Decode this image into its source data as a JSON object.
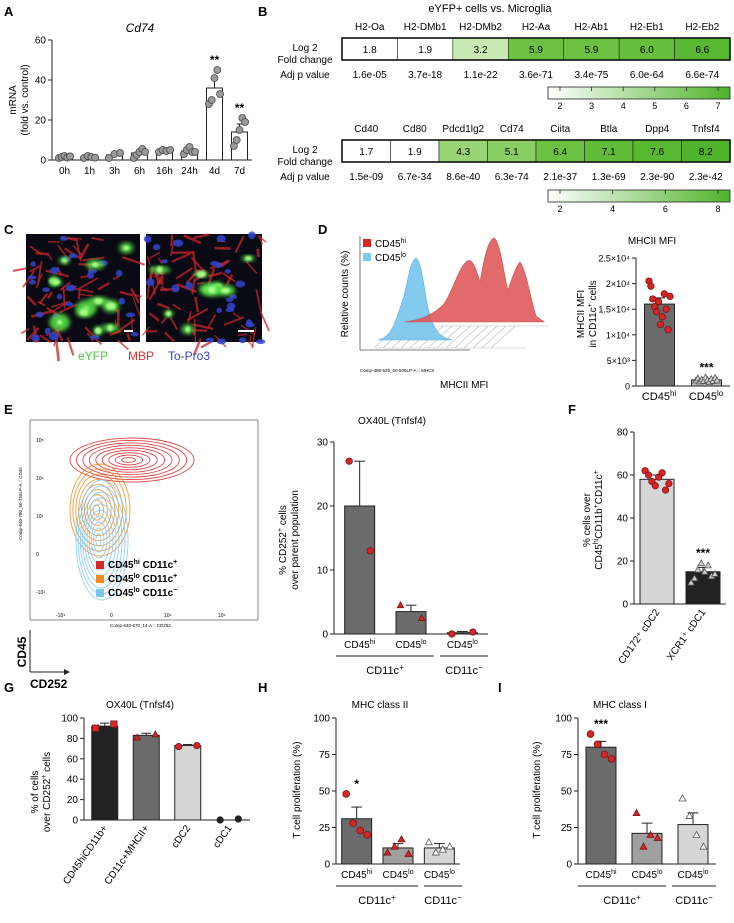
{
  "panels": {
    "A": "A",
    "B": "B",
    "C": "C",
    "D": "D",
    "E": "E",
    "F": "F",
    "G": "G",
    "H": "H",
    "I": "I"
  },
  "colors": {
    "bar_dark": "#6b6b6b",
    "bar_mid": "#a0a0a0",
    "bar_light": "#d6d6d6",
    "bar_black": "#222222",
    "red": "#d62728",
    "dot_grey": "#9a9a9a",
    "green_dark": "#4fb32b",
    "cyan": "#7cc8ee",
    "eyfp": "#44cc33",
    "mbp": "#dd3333",
    "topro": "#3344cc"
  },
  "panelA": {
    "title": "Cd74",
    "ylabel_1": "mRNA",
    "ylabel_2": "(fold vs. control)",
    "chart_data": {
      "type": "bar",
      "categories": [
        "0h",
        "1h",
        "3h",
        "6h",
        "16h",
        "24h",
        "4d",
        "7d"
      ],
      "values": [
        1.5,
        1.5,
        2.5,
        3.5,
        4.5,
        4.5,
        36,
        14
      ],
      "errors": [
        0.5,
        0.5,
        0.8,
        1.5,
        0.8,
        1.5,
        6,
        4
      ],
      "points": [
        [
          1,
          1.5,
          2,
          1.2,
          1.8
        ],
        [
          1,
          2,
          1.5,
          1.2
        ],
        [
          1,
          3,
          3.5
        ],
        [
          1,
          2.5,
          4,
          5.5,
          4
        ],
        [
          4,
          5,
          4.5,
          5
        ],
        [
          3,
          5,
          6.5,
          4,
          4
        ],
        [
          28,
          30,
          41,
          45,
          33
        ],
        [
          7,
          10,
          15,
          21,
          19
        ]
      ],
      "annotations": [
        "",
        "",
        "",
        "",
        "",
        "",
        "**",
        "**"
      ],
      "ylim": [
        0,
        60
      ],
      "yticks": [
        0,
        20,
        40,
        60
      ]
    }
  },
  "panelB": {
    "title": "eYFP+ cells vs. Microglia",
    "row_label_1a": "Log 2",
    "row_label_1b": "Fold change",
    "row_label_2": "Adj p value",
    "table1": {
      "genes": [
        "H2-Oa",
        "H2-DMb1",
        "H2-DMb2",
        "H2-Aa",
        "H2-Ab1",
        "H2-Eb1",
        "H2-Eb2"
      ],
      "fc": [
        "1.8",
        "1.9",
        "3.2",
        "5.9",
        "5.9",
        "6.0",
        "6.6"
      ],
      "p": [
        "1.6e-05",
        "3.7e-18",
        "1.1e-22",
        "3.6e-71",
        "3.4e-75",
        "6.0e-64",
        "6.6e-74"
      ],
      "fill": [
        "#ffffff",
        "#ffffff",
        "#c8e8b4",
        "#6cc142",
        "#6cc142",
        "#66bf3c",
        "#58b831"
      ]
    },
    "scale1": {
      "ticks": [
        "2",
        "3",
        "4",
        "5",
        "6",
        "7"
      ]
    },
    "table2": {
      "genes": [
        "Cd40",
        "Cd80",
        "Pdcd1lg2",
        "Cd74",
        "Ciita",
        "Btla",
        "Dpp4",
        "Tnfsf4"
      ],
      "fc": [
        "1.7",
        "1.9",
        "4.3",
        "5.1",
        "6.4",
        "7.1",
        "7.6",
        "8.2"
      ],
      "p": [
        "1.5e-09",
        "6.7e-34",
        "8.6e-40",
        "6.3e-74",
        "2.1e-37",
        "1.3e-69",
        "2.3e-90",
        "2.3e-42"
      ],
      "fill": [
        "#ffffff",
        "#ffffff",
        "#98d576",
        "#88ce63",
        "#6cc142",
        "#60bb37",
        "#58b831",
        "#4fb32b"
      ]
    },
    "scale2": {
      "ticks": [
        "2",
        "4",
        "6",
        "8"
      ]
    }
  },
  "panelC": {
    "legend": [
      "eYFP",
      "MBP",
      "To-Pro3"
    ]
  },
  "panelD": {
    "hist_ylabel": "Relative counts (%)",
    "hist_xlabel": "MHCII MFI",
    "hist_axis_small": "Comp-488-525_50-505LP-A :: MHCII",
    "legend_hi": "CD45",
    "legend_hi_sup": "hi",
    "legend_lo": "CD45",
    "legend_lo_sup": "lo",
    "bar_title": "MHCII MFI",
    "bar_ylabel_1": "MHCII MFI",
    "bar_ylabel_2": "in CD11c",
    "bar_ylabel_sup": "+",
    "bar_ylabel_3": " cells",
    "chart_data": {
      "type": "bar",
      "categories": [
        "CD45hi",
        "CD45lo"
      ],
      "values": [
        16000,
        1200
      ],
      "errors": [
        1200,
        200
      ],
      "points": [
        [
          20500,
          19500,
          17000,
          15500,
          14500,
          16500,
          12000,
          13500,
          18000,
          15000,
          11000,
          17500
        ],
        [
          1100,
          1500,
          900,
          1300,
          1000,
          1700,
          1200,
          800,
          1400,
          1000,
          1600,
          1100
        ]
      ],
      "annotations": [
        "",
        "***"
      ],
      "ylim": [
        0,
        25000
      ],
      "yticks": [
        "0",
        "5×10³",
        "1×10⁴",
        "1.5×10⁴",
        "2×10⁴",
        "2.5×10⁴"
      ]
    },
    "xtick_hi": "CD45",
    "xtick_hi_sup": "hi",
    "xtick_lo": "CD45",
    "xtick_lo_sup": "lo"
  },
  "panelE": {
    "flow_ylabel": "CD45",
    "flow_xlabel": "CD252",
    "flow_axis_small_y": "Comp-640-780_60-755LP-A :: CD45",
    "flow_axis_small_x": "Comp-640-670_14-A :: CD252",
    "legend": [
      {
        "a": "CD45",
        "sup": "hi",
        "b": " CD11c",
        "sup2": "+",
        "color": "#d62728"
      },
      {
        "a": "CD45",
        "sup": "lo",
        "b": " CD11c",
        "sup2": "+",
        "color": "#f08a1c"
      },
      {
        "a": "CD45",
        "sup": "lo",
        "b": " CD11c",
        "sup2": "−",
        "color": "#7cc8ee"
      }
    ],
    "bar_title": "OX40L (Tnfsf4)",
    "bar_ylabel_1": "% CD252",
    "bar_ylabel_sup": "+",
    "bar_ylabel_2": " cells",
    "bar_ylabel_3": "over parent population",
    "chart_data": {
      "type": "bar",
      "categories": [
        "CD45hi",
        "CD45lo",
        "CD45lo"
      ],
      "values": [
        20,
        3.5,
        0.2
      ],
      "errors": [
        7,
        1,
        0.2
      ],
      "points": [
        [
          27,
          13
        ],
        [
          4.5,
          2.5
        ],
        [
          0,
          0.3
        ]
      ],
      "ylim": [
        0,
        30
      ],
      "yticks": [
        0,
        10,
        20,
        30
      ]
    },
    "group1": "CD11c",
    "group1_sup": "+",
    "group2": "CD11c",
    "group2_sup": "−"
  },
  "panelF": {
    "ylabel_1": "% cells over",
    "ylabel_2": "CD45",
    "ylabel_sup": "hi",
    "ylabel_3": "CD11b",
    "ylabel_sup2": "+",
    "ylabel_4": "CD11c",
    "ylabel_sup3": "+",
    "chart_data": {
      "type": "bar",
      "categories": [
        "CD172⁺ cDC2",
        "XCR1⁺ cDC1"
      ],
      "values": [
        58,
        15
      ],
      "errors": [
        2,
        2
      ],
      "points": [
        [
          62,
          60,
          57,
          55,
          59,
          61,
          53,
          56
        ],
        [
          10,
          12,
          16,
          19,
          15,
          18,
          13,
          14
        ]
      ],
      "annotations": [
        "",
        "***"
      ],
      "ylim": [
        0,
        80
      ],
      "yticks": [
        0,
        20,
        40,
        60,
        80
      ]
    }
  },
  "panelG": {
    "title": "OX40L (Tnfsf4)",
    "ylabel_1": "% of cells",
    "ylabel_2": "over CD252",
    "ylabel_sup": "+",
    "ylabel_3": " cells",
    "chart_data": {
      "type": "bar",
      "categories": [
        "CD45hiCD11b+",
        "CD11c+MHCII+",
        "cDC2",
        "cDC1"
      ],
      "values": [
        92,
        83,
        73,
        0
      ],
      "errors": [
        3,
        2,
        1,
        0
      ],
      "points": [
        [
          90,
          94
        ],
        [
          81,
          84
        ],
        [
          72,
          73
        ],
        [
          0,
          1
        ]
      ],
      "markers": [
        "square",
        "triangle",
        "circle",
        "circle"
      ],
      "ylim": [
        0,
        100
      ],
      "yticks": [
        0,
        20,
        40,
        60,
        80,
        100
      ]
    }
  },
  "panelH": {
    "title": "MHC class II",
    "ylabel": "T cell proliferation (%)",
    "chart_data": {
      "type": "bar",
      "categories": [
        "CD45hi",
        "CD45lo",
        "CD45lo"
      ],
      "values": [
        31,
        11,
        11
      ],
      "errors": [
        8,
        3,
        3
      ],
      "points": [
        [
          48,
          28,
          23,
          20
        ],
        [
          8,
          12,
          17,
          7
        ],
        [
          15,
          8,
          10,
          12
        ]
      ],
      "annotations": [
        "*",
        "",
        ""
      ],
      "ylim": [
        0,
        100
      ],
      "yticks": [
        0,
        25,
        50,
        75,
        100
      ]
    },
    "group1": "CD11c",
    "group1_sup": "+",
    "group2": "CD11c",
    "group2_sup": "−"
  },
  "panelI": {
    "title": "MHC class I",
    "ylabel": "T cell proliferation (%)",
    "chart_data": {
      "type": "bar",
      "categories": [
        "CD45hi",
        "CD45lo",
        "CD45lo"
      ],
      "values": [
        80,
        21,
        27
      ],
      "errors": [
        4,
        7,
        8
      ],
      "points": [
        [
          89,
          82,
          75,
          72
        ],
        [
          35,
          12,
          20,
          18
        ],
        [
          45,
          33,
          20,
          12
        ]
      ],
      "annotations": [
        "***",
        "",
        ""
      ],
      "ylim": [
        0,
        100
      ],
      "yticks": [
        0,
        25,
        50,
        75,
        100
      ]
    },
    "group1": "CD11c",
    "group1_sup": "+",
    "group2": "CD11c",
    "group2_sup": "−"
  }
}
